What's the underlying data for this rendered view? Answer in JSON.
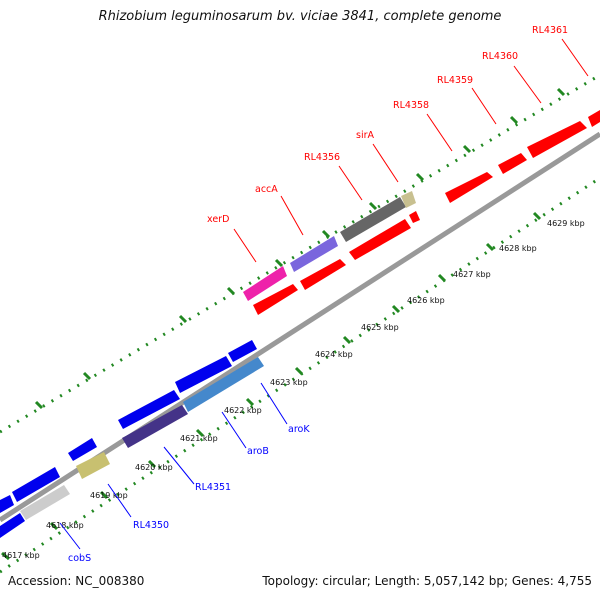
{
  "title": "Rhizobium leguminosarum bv. viciae 3841, complete genome",
  "footer": {
    "accession": "Accession: NC_008380",
    "topology": "Topology: circular; Length: 5,057,142 bp; Genes: 4,755"
  },
  "colors": {
    "forward_genes": "#ff0000",
    "reverse_genes": "#0000ff",
    "backbone": "#999999",
    "ticks": "#228822"
  },
  "scale_labels": [
    "4617 kbp",
    "4618 kbp",
    "4619 kbp",
    "4620 kbp",
    "4621 kbp",
    "4622 kbp",
    "4623 kbp",
    "4624 kbp",
    "4625 kbp",
    "4626 kbp",
    "4627 kbp",
    "4628 kbp",
    "4629 kbp"
  ],
  "gene_labels_top": [
    "xerD",
    "accA",
    "RL4356",
    "sirA",
    "RL4358",
    "RL4359",
    "RL4360",
    "RL4361"
  ],
  "gene_labels_bottom": [
    "cobS",
    "RL4350",
    "RL4351",
    "aroB",
    "aroK"
  ]
}
